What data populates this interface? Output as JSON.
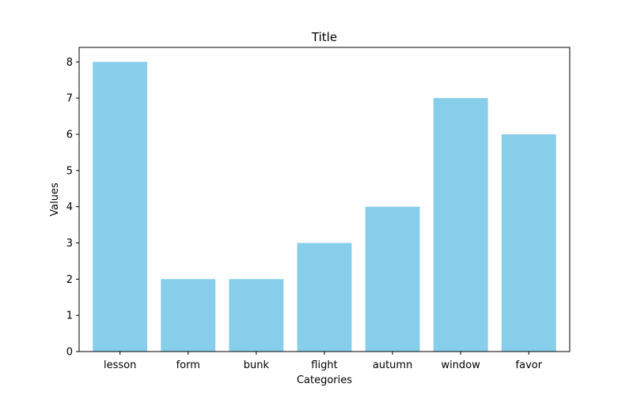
{
  "chart_data": {
    "type": "bar",
    "title": "Title",
    "xlabel": "Categories",
    "ylabel": "Values",
    "categories": [
      "lesson",
      "form",
      "bunk",
      "flight",
      "autumn",
      "window",
      "favor"
    ],
    "values": [
      8,
      2,
      2,
      3,
      4,
      7,
      6
    ],
    "ylim": [
      0,
      8.4
    ],
    "yticks": [
      "0",
      "1",
      "2",
      "3",
      "4",
      "5",
      "6",
      "7",
      "8"
    ],
    "grid": false,
    "bar_color": "#87CEEB",
    "axis_color": "#000000"
  }
}
